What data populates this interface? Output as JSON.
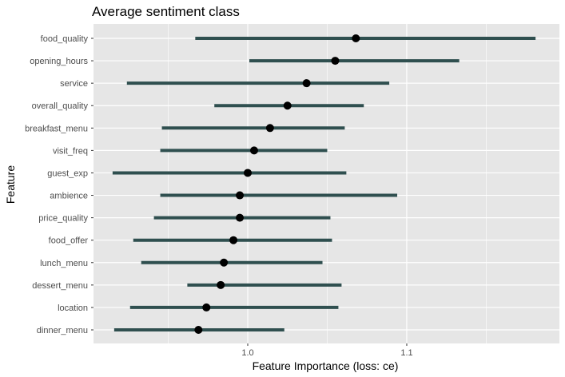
{
  "chart_data": {
    "type": "dot-interval",
    "title": "Average sentiment class",
    "xlabel": "Feature Importance (loss: ce)",
    "ylabel": "Feature",
    "xlim": [
      0.903,
      1.196
    ],
    "xticks": [
      1.0,
      1.1
    ],
    "xtick_labels": [
      "1.0",
      "1.1"
    ],
    "grid": true,
    "legend": "none",
    "colors": {
      "panel": "#e6e6e6",
      "grid": "#ffffff",
      "interval": "#2f4f4f",
      "point": "#000000"
    },
    "series": [
      {
        "feature": "food_quality",
        "importance": 1.068,
        "low": 0.967,
        "high": 1.181
      },
      {
        "feature": "opening_hours",
        "importance": 1.055,
        "low": 1.001,
        "high": 1.133
      },
      {
        "feature": "service",
        "importance": 1.037,
        "low": 0.924,
        "high": 1.089
      },
      {
        "feature": "overall_quality",
        "importance": 1.025,
        "low": 0.979,
        "high": 1.073
      },
      {
        "feature": "breakfast_menu",
        "importance": 1.014,
        "low": 0.946,
        "high": 1.061
      },
      {
        "feature": "visit_freq",
        "importance": 1.004,
        "low": 0.945,
        "high": 1.05
      },
      {
        "feature": "guest_exp",
        "importance": 1.0,
        "low": 0.915,
        "high": 1.062
      },
      {
        "feature": "ambience",
        "importance": 0.995,
        "low": 0.945,
        "high": 1.094
      },
      {
        "feature": "price_quality",
        "importance": 0.995,
        "low": 0.941,
        "high": 1.052
      },
      {
        "feature": "food_offer",
        "importance": 0.991,
        "low": 0.928,
        "high": 1.053
      },
      {
        "feature": "lunch_menu",
        "importance": 0.985,
        "low": 0.933,
        "high": 1.047
      },
      {
        "feature": "dessert_menu",
        "importance": 0.983,
        "low": 0.962,
        "high": 1.059
      },
      {
        "feature": "location",
        "importance": 0.974,
        "low": 0.926,
        "high": 1.057
      },
      {
        "feature": "dinner_menu",
        "importance": 0.969,
        "low": 0.916,
        "high": 1.023
      }
    ]
  }
}
